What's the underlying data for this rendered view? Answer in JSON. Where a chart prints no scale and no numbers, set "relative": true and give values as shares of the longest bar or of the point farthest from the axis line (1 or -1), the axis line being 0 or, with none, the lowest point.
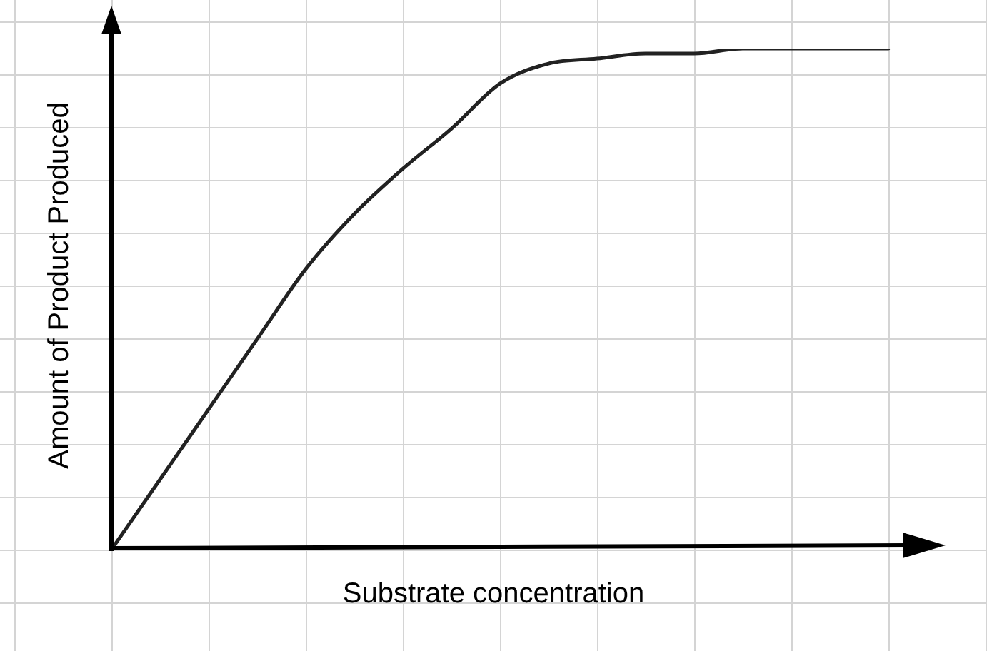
{
  "chart_data": {
    "type": "line",
    "xlabel": "Substrate concentration",
    "ylabel": "Amount of Product Produced",
    "categories": [
      null,
      null,
      null,
      null,
      null,
      null,
      null,
      null,
      null,
      null,
      null,
      null,
      null,
      null,
      null,
      null,
      null
    ],
    "values": [
      0,
      0.14,
      0.28,
      0.42,
      0.56,
      0.67,
      0.76,
      0.84,
      0.93,
      0.97,
      0.98,
      0.99,
      0.99,
      1.0,
      1.0,
      1.0,
      1.0
    ],
    "color": "#222222",
    "relative": true,
    "marker": "none",
    "line_style": "solid",
    "legend": false
  }
}
